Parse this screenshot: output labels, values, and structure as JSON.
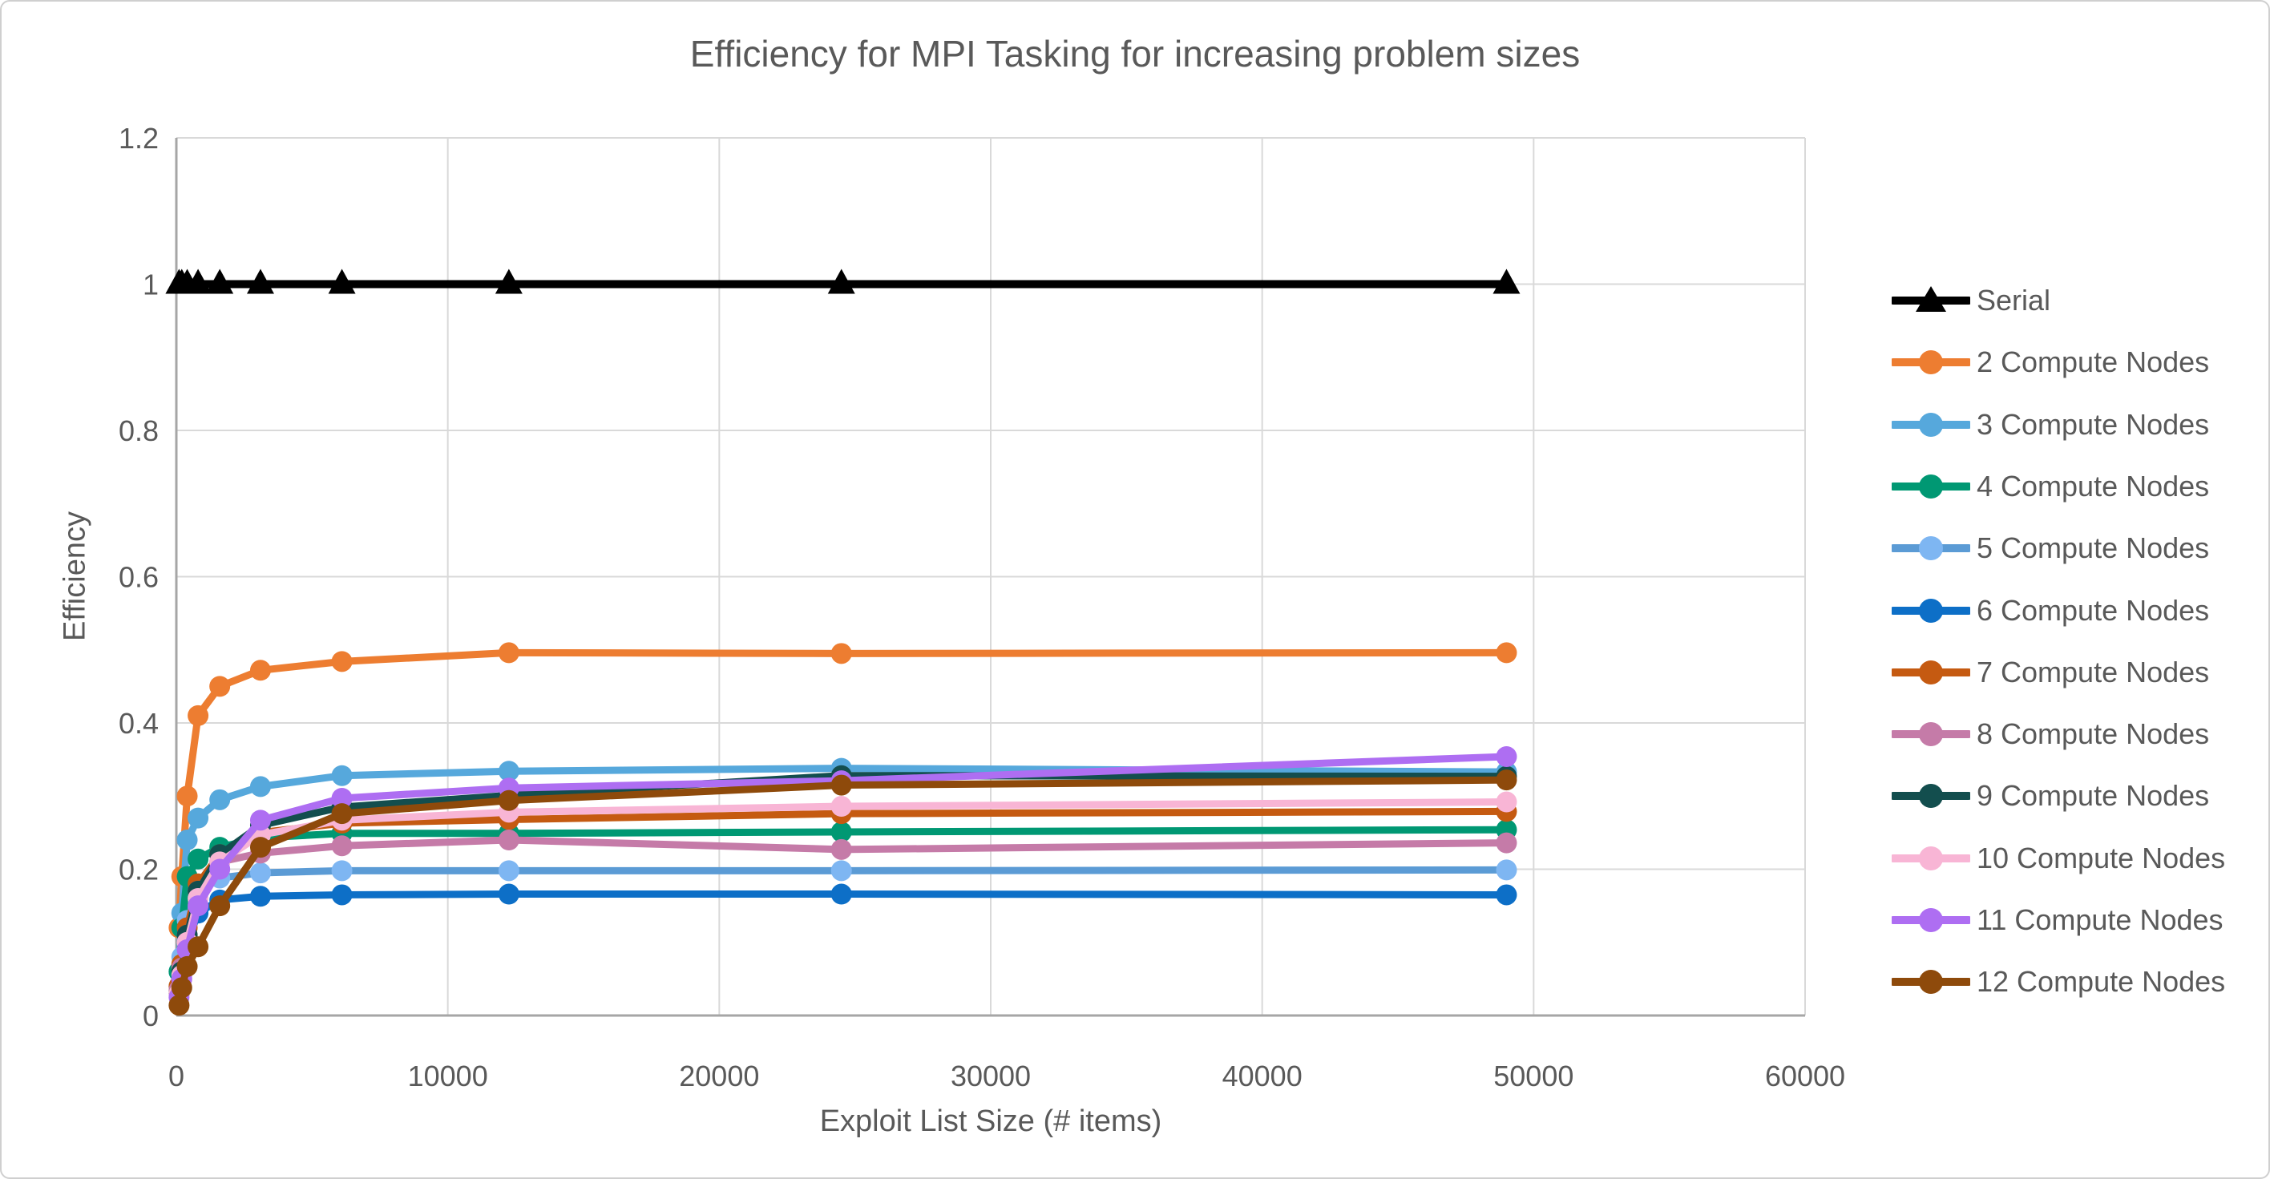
{
  "chart_data": {
    "type": "line",
    "title": "Efficiency for MPI Tasking for increasing problem sizes",
    "xlabel": "Exploit List Size (# items)",
    "ylabel": "Efficiency",
    "xlim": [
      0,
      60000
    ],
    "ylim": [
      0,
      1.2
    ],
    "x_ticks": [
      0,
      10000,
      20000,
      30000,
      40000,
      50000,
      60000
    ],
    "x_tick_labels": [
      "0",
      "10000",
      "20000",
      "30000",
      "40000",
      "50000",
      "60000"
    ],
    "y_ticks": [
      0,
      0.2,
      0.4,
      0.6,
      0.8,
      1,
      1.2
    ],
    "y_tick_labels": [
      "0",
      "0.2",
      "0.4",
      "0.6",
      "0.8",
      "1",
      "1.2"
    ],
    "grid": true,
    "legend_position": "right",
    "grid_color": "#D9D9D9",
    "axis_color": "#A6A6A6",
    "text_color": "#595959",
    "x": [
      100,
      200,
      400,
      800,
      1600,
      3100,
      6100,
      12250,
      24500,
      49000
    ],
    "series": [
      {
        "name": "Serial",
        "color": "#000000",
        "marker": "triangle",
        "values": [
          1,
          1,
          1,
          1,
          1,
          1,
          1,
          1,
          1,
          1
        ]
      },
      {
        "name": "2 Compute Nodes",
        "color": "#ED7D31",
        "marker": "circle",
        "values": [
          0.12,
          0.19,
          0.3,
          0.41,
          0.45,
          0.472,
          0.484,
          0.496,
          0.495,
          0.496
        ]
      },
      {
        "name": "3 Compute Nodes",
        "color": "#56A8DC",
        "marker": "circle",
        "values": [
          0.06,
          0.14,
          0.24,
          0.27,
          0.295,
          0.313,
          0.328,
          0.334,
          0.338,
          0.333
        ]
      },
      {
        "name": "4 Compute Nodes",
        "color": "#009873",
        "marker": "circle",
        "values": [
          0.06,
          0.12,
          0.19,
          0.214,
          0.23,
          0.243,
          0.249,
          0.249,
          0.251,
          0.254
        ]
      },
      {
        "name": "5 Compute Nodes",
        "color": "#5B9BD5",
        "marker": "circle",
        "marker_color": "#7EB6F2",
        "values": [
          0.04,
          0.08,
          0.13,
          0.17,
          0.188,
          0.195,
          0.198,
          0.198,
          0.198,
          0.199
        ]
      },
      {
        "name": "6 Compute Nodes",
        "color": "#0D6FC7",
        "marker": "circle",
        "values": [
          0.03,
          0.06,
          0.1,
          0.14,
          0.158,
          0.163,
          0.165,
          0.166,
          0.166,
          0.165
        ]
      },
      {
        "name": "7 Compute Nodes",
        "color": "#C55A11",
        "marker": "circle",
        "values": [
          0.04,
          0.07,
          0.12,
          0.18,
          0.22,
          0.25,
          0.263,
          0.268,
          0.276,
          0.279
        ]
      },
      {
        "name": "8 Compute Nodes",
        "color": "#C57BA8",
        "marker": "circle",
        "values": [
          0.035,
          0.065,
          0.11,
          0.17,
          0.21,
          0.222,
          0.232,
          0.24,
          0.227,
          0.236
        ]
      },
      {
        "name": "9 Compute Nodes",
        "color": "#134E4E",
        "marker": "circle",
        "values": [
          0.03,
          0.06,
          0.11,
          0.17,
          0.22,
          0.26,
          0.285,
          0.301,
          0.328,
          0.327
        ]
      },
      {
        "name": "10 Compute Nodes",
        "color": "#F8B5D5",
        "marker": "circle",
        "values": [
          0.03,
          0.055,
          0.1,
          0.16,
          0.21,
          0.247,
          0.267,
          0.278,
          0.286,
          0.292
        ]
      },
      {
        "name": "11 Compute Nodes",
        "color": "#AE6EF2",
        "marker": "circle",
        "values": [
          0.025,
          0.05,
          0.09,
          0.15,
          0.2,
          0.267,
          0.297,
          0.311,
          0.321,
          0.354
        ]
      },
      {
        "name": "12 Compute Nodes",
        "color": "#8E4A0B",
        "marker": "circle",
        "values": [
          0.014,
          0.038,
          0.067,
          0.094,
          0.15,
          0.23,
          0.276,
          0.294,
          0.315,
          0.322
        ]
      }
    ]
  }
}
